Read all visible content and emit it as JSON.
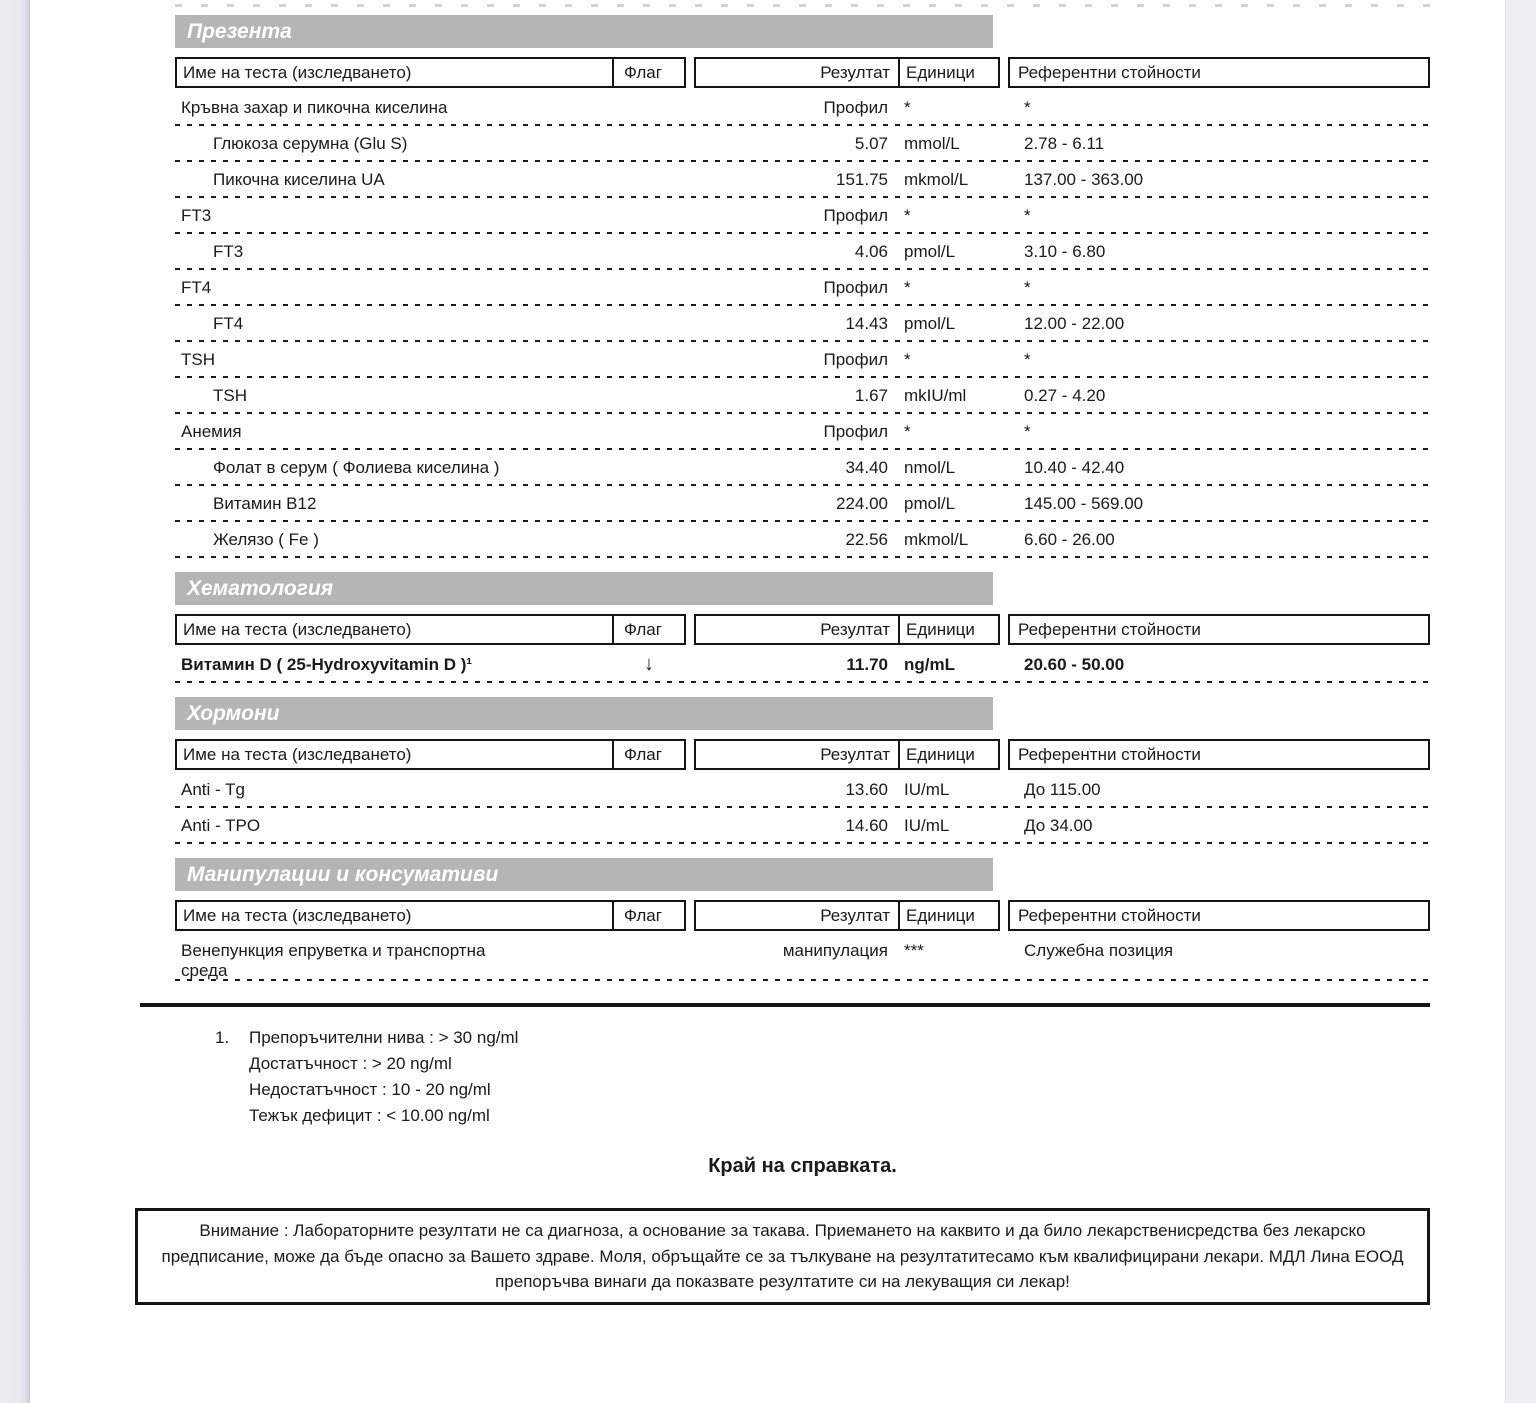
{
  "columns": [
    "Име на теста (изследването)",
    "Флаг",
    "Резултат",
    "Единици",
    "Референтни стойности"
  ],
  "sections": [
    {
      "title": "Презента",
      "rows": [
        {
          "name": "Кръвна захар и пикочна киселина",
          "flag": "",
          "result": "Профил",
          "units": "*",
          "reference": "*",
          "indent": false,
          "bold": false
        },
        {
          "name": "Глюкоза серумна (Glu S)",
          "flag": "",
          "result": "5.07",
          "units": "mmol/L",
          "reference": "2.78 - 6.11",
          "indent": true,
          "bold": false
        },
        {
          "name": "Пикочна киселина UA",
          "flag": "",
          "result": "151.75",
          "units": "mkmol/L",
          "reference": "137.00 - 363.00",
          "indent": true,
          "bold": false
        },
        {
          "name": "FT3",
          "flag": "",
          "result": "Профил",
          "units": "*",
          "reference": "*",
          "indent": false,
          "bold": false
        },
        {
          "name": "FT3",
          "flag": "",
          "result": "4.06",
          "units": "pmol/L",
          "reference": "3.10 - 6.80",
          "indent": true,
          "bold": false
        },
        {
          "name": "FT4",
          "flag": "",
          "result": "Профил",
          "units": "*",
          "reference": "*",
          "indent": false,
          "bold": false
        },
        {
          "name": "FT4",
          "flag": "",
          "result": "14.43",
          "units": "pmol/L",
          "reference": "12.00 - 22.00",
          "indent": true,
          "bold": false
        },
        {
          "name": "TSH",
          "flag": "",
          "result": "Профил",
          "units": "*",
          "reference": "*",
          "indent": false,
          "bold": false
        },
        {
          "name": "TSH",
          "flag": "",
          "result": "1.67",
          "units": "mkIU/ml",
          "reference": "0.27 - 4.20",
          "indent": true,
          "bold": false
        },
        {
          "name": "Анемия",
          "flag": "",
          "result": "Профил",
          "units": "*",
          "reference": "*",
          "indent": false,
          "bold": false
        },
        {
          "name": "Фолат в серум ( Фолиева киселина )",
          "flag": "",
          "result": "34.40",
          "units": "nmol/L",
          "reference": "10.40 - 42.40",
          "indent": true,
          "bold": false
        },
        {
          "name": "Витамин B12",
          "flag": "",
          "result": "224.00",
          "units": "pmol/L",
          "reference": "145.00 - 569.00",
          "indent": true,
          "bold": false
        },
        {
          "name": "Желязо ( Fe )",
          "flag": "",
          "result": "22.56",
          "units": "mkmol/L",
          "reference": "6.60 - 26.00",
          "indent": true,
          "bold": false
        }
      ]
    },
    {
      "title": "Хематология",
      "rows": [
        {
          "name": "Витамин D ( 25-Hydroxyvitamin D )¹",
          "flag": "↓",
          "result": "11.70",
          "units": "ng/mL",
          "reference": "20.60 - 50.00",
          "indent": false,
          "bold": true
        }
      ]
    },
    {
      "title": "Хормони",
      "rows": [
        {
          "name": "Anti - Tg",
          "flag": "",
          "result": "13.60",
          "units": "IU/mL",
          "reference": "До 115.00",
          "indent": false,
          "bold": false
        },
        {
          "name": "Anti - TPO",
          "flag": "",
          "result": "14.60",
          "units": "IU/mL",
          "reference": "До 34.00",
          "indent": false,
          "bold": false
        }
      ]
    },
    {
      "title": "Манипулации и консумативи",
      "rows": [
        {
          "name": "Венепункция  епруветка и транспортна\nсреда",
          "flag": "",
          "result": "манипулация",
          "units": "***",
          "reference": "Служебна позиция",
          "indent": false,
          "bold": false
        }
      ]
    }
  ],
  "footnotes": {
    "marker": "1.",
    "lines": [
      "Препоръчителни нива : > 30 ng/ml",
      "Достатъчност : > 20  ng/ml",
      "Недостатъчност : 10 - 20  ng/ml",
      "Тежък дефицит : < 10.00  ng/ml"
    ]
  },
  "end_text": "Край на справката.",
  "warning": "Внимание : Лабораторните резултати не са диагноза, а основание за такава. Приемането на каквито и да било лекарственисредства без лекарско предписание, може да бъде опасно за Вашето здраве. Моля, обръщайте се за тълкуване на резултатитесамо към квалифицирани лекари. МДЛ Лина ЕООД препоръчва винаги да показвате резултатите си на лекуващия си лекар!",
  "colors": {
    "section_bar": "#b5b5b5",
    "section_bar_text": "#ffffff",
    "page_edge": "#ededf1",
    "text": "#1a1a1a"
  }
}
